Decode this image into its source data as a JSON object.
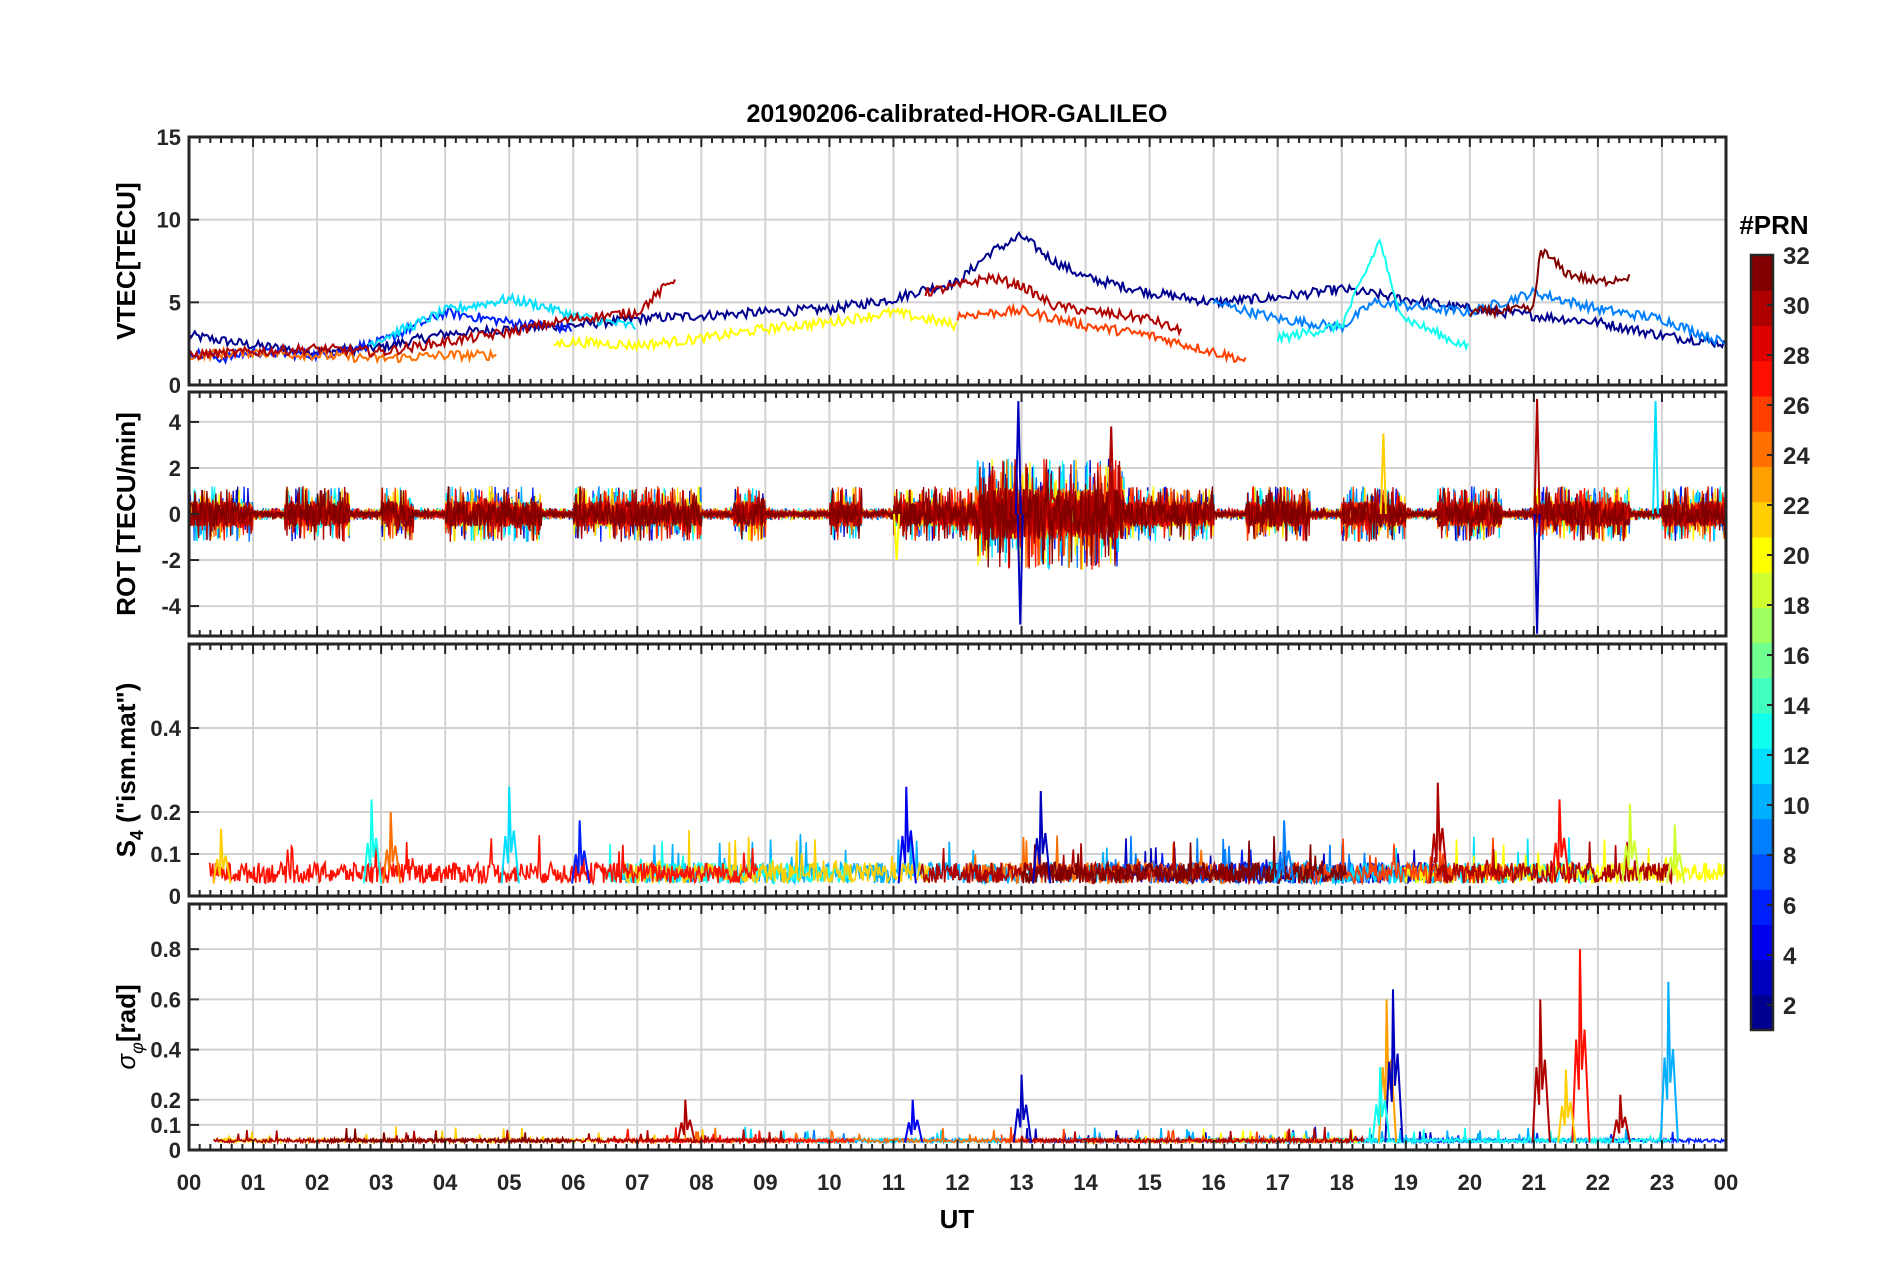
{
  "title": "20190206-calibrated-HOR-GALILEO",
  "colormap": {
    "title": "#PRN",
    "min": 1,
    "max": 32,
    "ticks": [
      "2",
      "4",
      "6",
      "8",
      "10",
      "12",
      "14",
      "16",
      "18",
      "20",
      "22",
      "24",
      "26",
      "28",
      "30",
      "32"
    ],
    "colors": [
      "#00008f",
      "#0000bf",
      "#0000ef",
      "#001fff",
      "#004fff",
      "#007fff",
      "#00afff",
      "#00dfff",
      "#10ffef",
      "#40ffbf",
      "#70ff8f",
      "#9fff60",
      "#cfff30",
      "#ffff00",
      "#ffcf00",
      "#ff9f00",
      "#ff6f00",
      "#ff3f00",
      "#ff0f00",
      "#df0000",
      "#af0000",
      "#800000"
    ]
  },
  "chart_data": [
    {
      "type": "line",
      "panel": "vtec",
      "ylabel": "VTEC[TECU]",
      "ylim": [
        0,
        15
      ],
      "yticks": [
        "0",
        "5",
        "10",
        "15"
      ],
      "xlim": [
        0,
        24
      ],
      "grid": true,
      "series": [
        {
          "prn": 1,
          "x": [
            0,
            1,
            2,
            3,
            4,
            5,
            6,
            7,
            8,
            9,
            10,
            11,
            11.5,
            12,
            12.5,
            13,
            13.5,
            14,
            15,
            16,
            17,
            18,
            19,
            20,
            21,
            22,
            23,
            24
          ],
          "y": [
            3.0,
            2.4,
            2.0,
            2.3,
            3.1,
            3.4,
            3.6,
            4.0,
            4.2,
            4.4,
            4.6,
            5.2,
            5.8,
            6.2,
            8.0,
            9.0,
            7.5,
            6.5,
            5.6,
            5.0,
            5.3,
            5.8,
            5.2,
            4.6,
            4.2,
            3.8,
            3.0,
            2.5
          ]
        },
        {
          "prn": 5,
          "x": [
            0,
            0.5,
            1,
            2,
            3,
            4,
            5,
            6
          ],
          "y": [
            2.0,
            1.6,
            2.0,
            1.8,
            2.6,
            4.4,
            3.8,
            3.4
          ]
        },
        {
          "prn": 8,
          "x": [
            16,
            17,
            18,
            18.5,
            19,
            20,
            21,
            22,
            23,
            24
          ],
          "y": [
            5.0,
            4.0,
            3.5,
            5.0,
            4.8,
            4.4,
            5.6,
            4.6,
            4.0,
            2.5
          ]
        },
        {
          "prn": 12,
          "x": [
            2.8,
            3.5,
            4,
            5,
            5.5,
            6,
            7
          ],
          "y": [
            2.5,
            3.6,
            4.5,
            5.2,
            4.8,
            4.2,
            3.5
          ]
        },
        {
          "prn": 13,
          "x": [
            17,
            18,
            18.6,
            18.8,
            19,
            20
          ],
          "y": [
            2.8,
            3.6,
            8.8,
            5.5,
            4.0,
            2.2
          ]
        },
        {
          "prn": 20,
          "x": [
            5.7,
            6,
            7,
            8,
            9,
            10,
            11,
            12
          ],
          "y": [
            2.5,
            2.6,
            2.4,
            2.8,
            3.4,
            3.8,
            4.4,
            3.6
          ]
        },
        {
          "prn": 24,
          "x": [
            0,
            1,
            2,
            3,
            4,
            4.8
          ],
          "y": [
            1.8,
            2.0,
            1.8,
            1.6,
            1.8,
            1.8
          ]
        },
        {
          "prn": 26,
          "x": [
            12,
            13,
            14,
            15,
            16,
            16.5
          ],
          "y": [
            4.2,
            4.5,
            3.6,
            3.0,
            2.0,
            1.5
          ]
        },
        {
          "prn": 30,
          "x": [
            0,
            1,
            2,
            3,
            4,
            5,
            6,
            7,
            7.6
          ],
          "y": [
            1.8,
            2.0,
            2.2,
            2.0,
            2.6,
            3.2,
            4.0,
            4.4,
            6.5
          ]
        },
        {
          "prn": 31,
          "x": [
            11.5,
            12,
            12.5,
            13,
            13.5,
            14,
            15,
            15.5
          ],
          "y": [
            5.6,
            6.0,
            6.5,
            6.0,
            4.8,
            4.5,
            4.0,
            3.2
          ]
        },
        {
          "prn": 32,
          "x": [
            20,
            21,
            21.1,
            21.5,
            22,
            22.5
          ],
          "y": [
            4.4,
            4.6,
            8.2,
            6.8,
            6.2,
            6.6
          ]
        }
      ]
    },
    {
      "type": "line",
      "panel": "rot",
      "ylabel": "ROT [TECU/min]",
      "ylim": [
        -5.3,
        5.3
      ],
      "yticks": [
        "-4",
        "-2",
        "0",
        "2",
        "4"
      ],
      "xlim": [
        0,
        24
      ],
      "grid": true,
      "active_intervals": [
        [
          0,
          1
        ],
        [
          1.5,
          2.5
        ],
        [
          3,
          3.5
        ],
        [
          4,
          5.5
        ],
        [
          6,
          8
        ],
        [
          8.5,
          9
        ],
        [
          10,
          10.5
        ],
        [
          11,
          16
        ],
        [
          16.5,
          17.5
        ],
        [
          18,
          19
        ],
        [
          19.5,
          20.5
        ],
        [
          21,
          22.5
        ],
        [
          23,
          24
        ]
      ],
      "peaks": [
        {
          "prn": 3,
          "x": 12.95,
          "y": 4.9
        },
        {
          "prn": 3,
          "x": 12.98,
          "y": -4.8
        },
        {
          "prn": 3,
          "x": 21.05,
          "y": -5.2
        },
        {
          "prn": 30,
          "x": 21.05,
          "y": 5.0
        },
        {
          "prn": 22,
          "x": 18.65,
          "y": 3.5
        },
        {
          "prn": 12,
          "x": 22.9,
          "y": 4.9
        },
        {
          "prn": 30,
          "x": 14.4,
          "y": 3.8
        },
        {
          "prn": 20,
          "x": 11.05,
          "y": -2.0
        }
      ]
    },
    {
      "type": "line",
      "panel": "s4",
      "ylabel": "S4 (\"ism.mat\")",
      "ylim": [
        0,
        0.6
      ],
      "yticks": [
        "0",
        "0.1",
        "0.2",
        "0.4"
      ],
      "xlim": [
        0,
        24
      ],
      "grid": true,
      "peaks": [
        {
          "prn": 11,
          "x": 5.0,
          "y": 0.26
        },
        {
          "prn": 13,
          "x": 2.85,
          "y": 0.23
        },
        {
          "prn": 24,
          "x": 3.15,
          "y": 0.2
        },
        {
          "prn": 4,
          "x": 11.2,
          "y": 0.26
        },
        {
          "prn": 3,
          "x": 13.3,
          "y": 0.25
        },
        {
          "prn": 30,
          "x": 19.5,
          "y": 0.27
        },
        {
          "prn": 28,
          "x": 21.4,
          "y": 0.23
        },
        {
          "prn": 18,
          "x": 22.5,
          "y": 0.22
        },
        {
          "prn": 6,
          "x": 6.1,
          "y": 0.18
        },
        {
          "prn": 8,
          "x": 17.1,
          "y": 0.18
        },
        {
          "prn": 19,
          "x": 23.2,
          "y": 0.17
        },
        {
          "prn": 22,
          "x": 0.5,
          "y": 0.16
        }
      ]
    },
    {
      "type": "line",
      "panel": "sigma_phi",
      "ylabel": "σφ[rad]",
      "ylim": [
        0,
        0.98
      ],
      "yticks": [
        "0",
        "0.1",
        "0.2",
        "0.4",
        "0.6",
        "0.8"
      ],
      "xlim": [
        0,
        24
      ],
      "grid": true,
      "peaks": [
        {
          "prn": 30,
          "x": 7.75,
          "y": 0.2
        },
        {
          "prn": 4,
          "x": 11.3,
          "y": 0.2
        },
        {
          "prn": 3,
          "x": 13.0,
          "y": 0.3
        },
        {
          "prn": 23,
          "x": 18.7,
          "y": 0.6
        },
        {
          "prn": 3,
          "x": 18.8,
          "y": 0.64
        },
        {
          "prn": 13,
          "x": 18.6,
          "y": 0.33
        },
        {
          "prn": 30,
          "x": 21.1,
          "y": 0.6
        },
        {
          "prn": 28,
          "x": 21.72,
          "y": 0.8
        },
        {
          "prn": 22,
          "x": 21.5,
          "y": 0.32
        },
        {
          "prn": 30,
          "x": 22.35,
          "y": 0.22
        },
        {
          "prn": 10,
          "x": 23.1,
          "y": 0.67
        }
      ]
    }
  ],
  "xaxis": {
    "label": "UT",
    "ticks": [
      "00",
      "01",
      "02",
      "03",
      "04",
      "05",
      "06",
      "07",
      "08",
      "09",
      "10",
      "11",
      "12",
      "13",
      "14",
      "15",
      "16",
      "17",
      "18",
      "19",
      "20",
      "21",
      "22",
      "23",
      "00"
    ]
  }
}
